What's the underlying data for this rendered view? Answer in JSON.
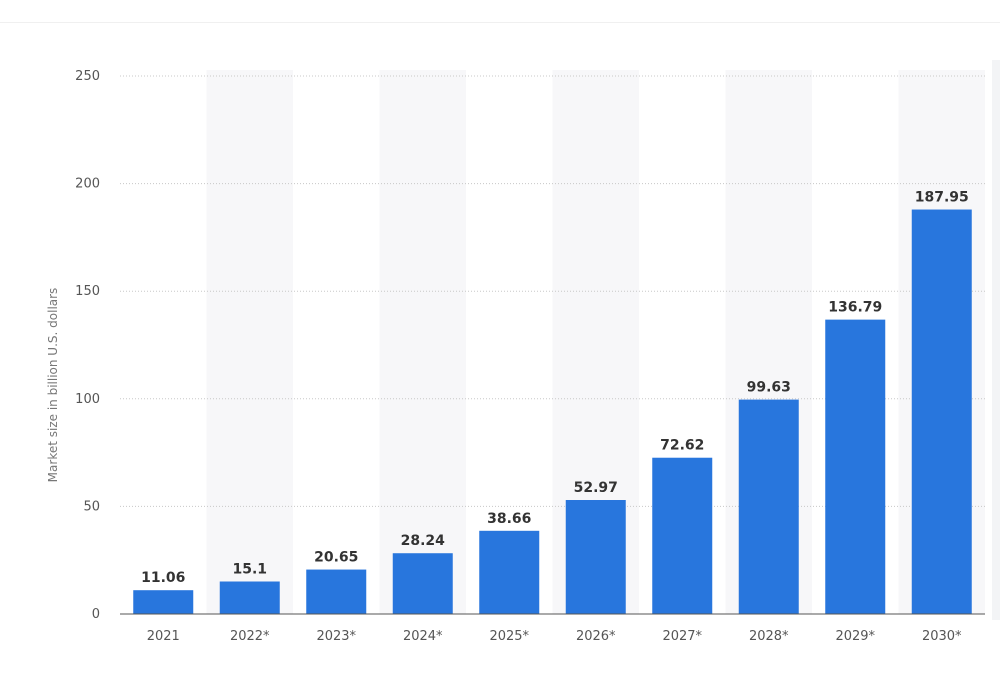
{
  "chart_data": {
    "type": "bar",
    "title": "",
    "xlabel": "",
    "ylabel": "Market size in billion U.S. dollars",
    "categories": [
      "2021",
      "2022*",
      "2023*",
      "2024*",
      "2025*",
      "2026*",
      "2027*",
      "2028*",
      "2029*",
      "2030*"
    ],
    "values": [
      11.06,
      15.1,
      20.65,
      28.24,
      38.66,
      52.97,
      72.62,
      99.63,
      136.79,
      187.95
    ],
    "value_labels": [
      "11.06",
      "15.1",
      "20.65",
      "28.24",
      "38.66",
      "52.97",
      "72.62",
      "99.63",
      "136.79",
      "187.95"
    ],
    "ylim": [
      0,
      250
    ],
    "yticks": [
      0,
      50,
      100,
      150,
      200,
      250
    ],
    "ytick_labels": [
      "0",
      "50",
      "100",
      "150",
      "200",
      "250"
    ],
    "grid": true,
    "legend": "none",
    "bar_color": "#2876dd",
    "band_color": "#f7f7f9",
    "grid_color": "#c8c8c8"
  }
}
